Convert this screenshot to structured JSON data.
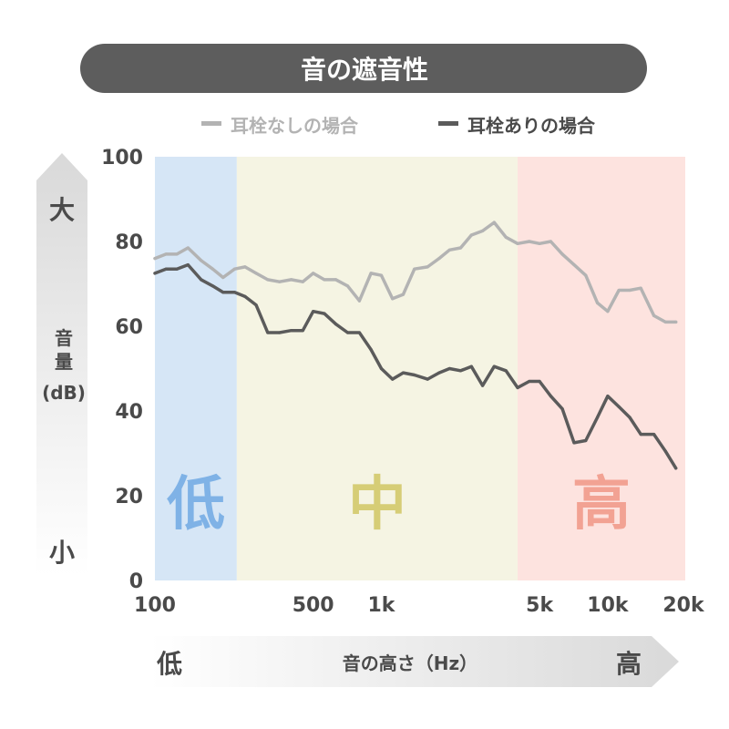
{
  "title": "音の遮音性",
  "colors": {
    "title_bg": "#5d5d5d",
    "title_text": "#ffffff",
    "band_low": "#d6e6f6",
    "band_mid": "#f5f4e3",
    "band_high": "#fde3df",
    "label_low": "#7fb2e6",
    "label_mid": "#d6cd76",
    "label_high": "#f2a293",
    "axis_text": "#4a4a4a",
    "series_without": "#b3b3b3",
    "series_with": "#5b5b5b"
  },
  "y_axis": {
    "label_lines": [
      "音",
      "量",
      "(dB)"
    ],
    "top_label": "大",
    "bottom_label": "小",
    "ticks": [
      "0",
      "20",
      "40",
      "60",
      "80",
      "100"
    ]
  },
  "x_axis": {
    "label": "音の高さ（Hz）",
    "left_label": "低",
    "right_label": "高",
    "ticks": [
      "100",
      "500",
      "1k",
      "5k",
      "10k",
      "20k"
    ]
  },
  "bands": [
    {
      "label": "低",
      "from": 100,
      "to": 230
    },
    {
      "label": "中",
      "from": 230,
      "to": 4000
    },
    {
      "label": "高",
      "from": 4000,
      "to": 22000
    }
  ],
  "chart_data": {
    "type": "line",
    "title": "音の遮音性",
    "xlabel": "音の高さ（Hz）",
    "ylabel": "音量(dB)",
    "xscale": "log",
    "ylim": [
      0,
      100
    ],
    "x_tick_values": [
      100,
      500,
      1000,
      5000,
      10000,
      20000
    ],
    "y_tick_values": [
      0,
      20,
      40,
      60,
      80,
      100
    ],
    "legend_position": "top",
    "series": [
      {
        "name": "耳栓なしの場合",
        "x": [
          100,
          112,
          125,
          140,
          160,
          180,
          200,
          225,
          250,
          280,
          315,
          355,
          400,
          450,
          500,
          560,
          630,
          710,
          800,
          900,
          1000,
          1120,
          1250,
          1400,
          1600,
          1800,
          2000,
          2240,
          2500,
          2800,
          3150,
          3550,
          4000,
          4500,
          5000,
          5600,
          6300,
          7100,
          8000,
          9000,
          10000,
          11200,
          12500,
          14000,
          16000,
          18000,
          20000
        ],
        "values": [
          76,
          77,
          77,
          78.5,
          75.5,
          73.5,
          71.5,
          73.5,
          74,
          72.5,
          71,
          70.5,
          71,
          70.5,
          72.5,
          71,
          71,
          69.5,
          66,
          72.5,
          72,
          66.5,
          67.5,
          73.5,
          74,
          76,
          78,
          78.5,
          81.5,
          82.5,
          84.5,
          81,
          79.5,
          80,
          79.5,
          80,
          77,
          74.5,
          72,
          65.5,
          63.5,
          68.5,
          68.5,
          69,
          62.5,
          61,
          61
        ]
      },
      {
        "name": "耳栓ありの場合",
        "x": [
          100,
          112,
          125,
          140,
          160,
          180,
          200,
          225,
          250,
          280,
          315,
          355,
          400,
          450,
          500,
          560,
          630,
          710,
          800,
          900,
          1000,
          1120,
          1250,
          1400,
          1600,
          1800,
          2000,
          2240,
          2500,
          2800,
          3150,
          3550,
          4000,
          4500,
          5000,
          5600,
          6300,
          7100,
          8000,
          9000,
          10000,
          11200,
          12500,
          14000,
          16000,
          18000,
          20000
        ],
        "values": [
          72.5,
          73.5,
          73.5,
          74.5,
          71,
          69.5,
          68,
          68,
          67,
          65,
          58.5,
          58.5,
          59,
          59,
          63.5,
          63,
          60.5,
          58.5,
          58.5,
          54.5,
          50,
          47.5,
          49,
          48.5,
          47.5,
          49,
          50,
          49.5,
          50.5,
          46,
          50.5,
          49.5,
          45.5,
          47,
          47,
          43.5,
          40.5,
          32.5,
          33,
          38.5,
          43.5,
          41,
          38.5,
          34.5,
          34.5,
          30.5,
          26.5
        ]
      }
    ]
  }
}
